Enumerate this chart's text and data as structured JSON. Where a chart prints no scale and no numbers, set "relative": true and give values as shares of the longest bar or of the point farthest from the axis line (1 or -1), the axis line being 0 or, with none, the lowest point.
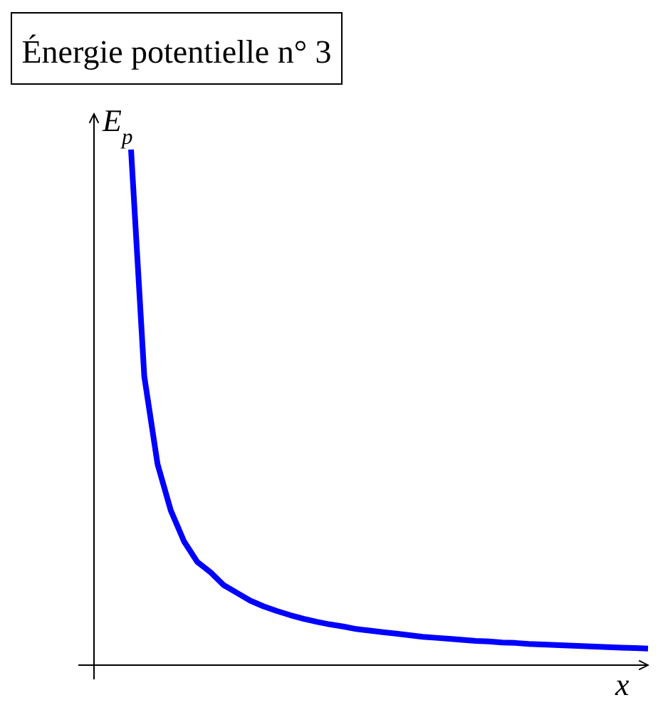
{
  "chart_data": {
    "type": "line",
    "title": "Énergie potentielle n° 3",
    "xlabel": "x",
    "ylabel": "E$_{p}$",
    "relative": true,
    "categories": [
      null,
      null,
      null,
      null,
      null,
      null,
      null,
      null,
      null,
      null,
      null,
      null,
      null,
      null,
      null,
      null,
      null,
      null,
      null,
      null,
      null,
      null,
      null,
      null,
      null,
      null,
      null,
      null,
      null,
      null,
      null,
      null,
      null,
      null,
      null,
      null,
      null,
      null,
      null,
      null
    ],
    "series": [
      {
        "color": "#0000ff",
        "values": [
          1,
          0.56,
          0.39,
          0.3,
          0.24,
          0.2,
          0.18,
          0.155,
          0.14,
          0.125,
          0.114,
          0.105,
          0.097,
          0.09,
          0.084,
          0.079,
          0.075,
          0.07,
          0.067,
          0.064,
          0.061,
          0.058,
          0.055,
          0.053,
          0.051,
          0.049,
          0.047,
          0.046,
          0.044,
          0.043,
          0.041,
          0.04,
          0.039,
          0.038,
          0.037,
          0.036,
          0.035,
          0.034,
          0.033,
          0.032
        ]
      }
    ],
    "marker": "none",
    "line_style": "solid"
  }
}
